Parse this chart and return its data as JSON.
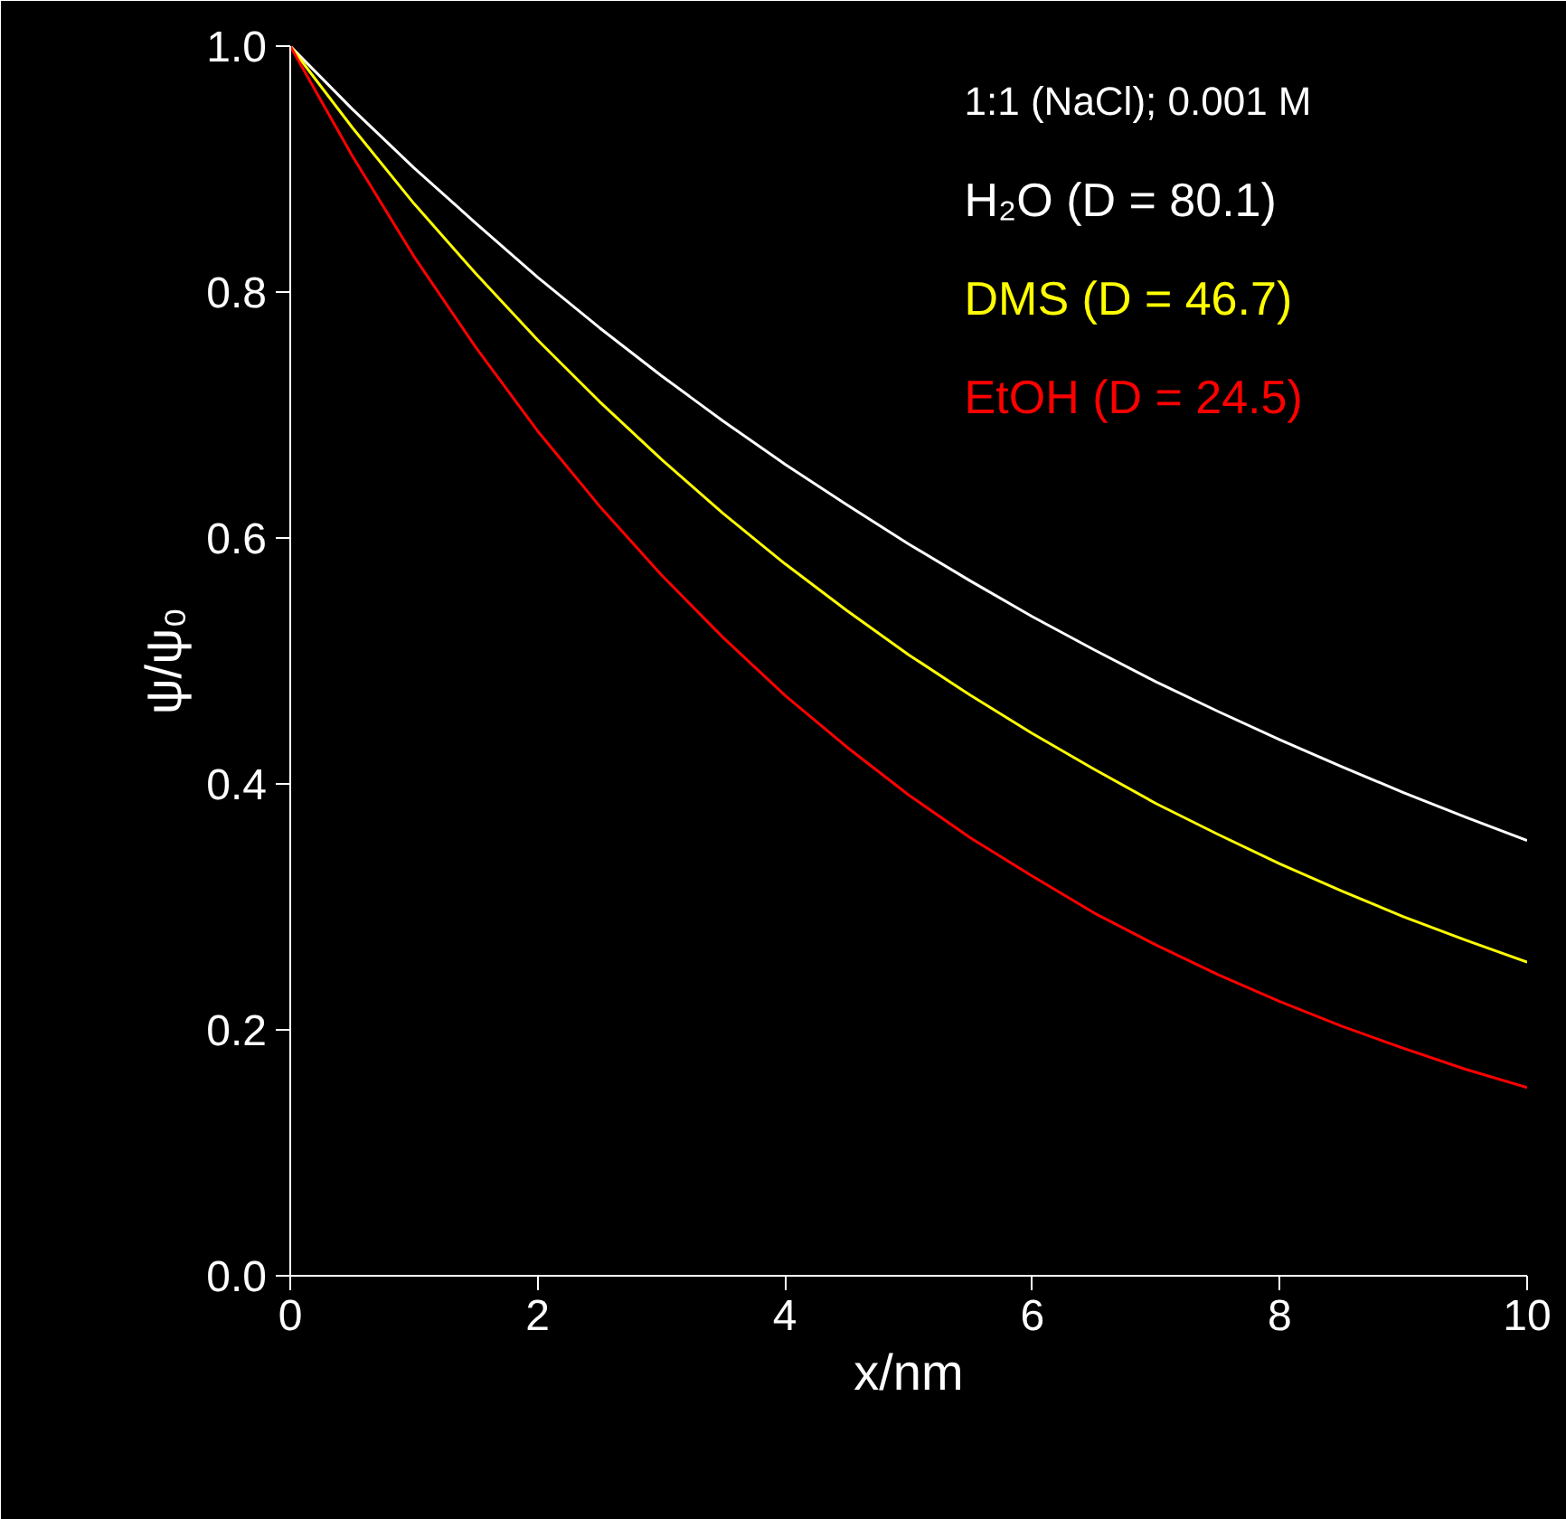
{
  "chart_data": {
    "type": "line",
    "x": [
      0,
      0.5,
      1,
      1.5,
      2,
      2.5,
      3,
      3.5,
      4,
      4.5,
      5,
      5.5,
      6,
      6.5,
      7,
      7.5,
      8,
      8.5,
      9,
      9.5,
      10
    ],
    "series": [
      {
        "name": "H₂O (D = 80.1)",
        "color": "#ffffff",
        "values": [
          1.0,
          0.949,
          0.901,
          0.856,
          0.812,
          0.771,
          0.732,
          0.695,
          0.66,
          0.627,
          0.595,
          0.565,
          0.536,
          0.509,
          0.483,
          0.459,
          0.436,
          0.414,
          0.393,
          0.373,
          0.354
        ]
      },
      {
        "name": "DMS (D = 46.7)",
        "color": "#ffff00",
        "values": [
          1.0,
          0.934,
          0.872,
          0.815,
          0.761,
          0.711,
          0.664,
          0.62,
          0.579,
          0.541,
          0.505,
          0.472,
          0.441,
          0.412,
          0.384,
          0.359,
          0.335,
          0.313,
          0.292,
          0.273,
          0.255
        ]
      },
      {
        "name": "EtOH (D = 24.5)",
        "color": "#ff0000",
        "values": [
          1.0,
          0.911,
          0.829,
          0.755,
          0.687,
          0.626,
          0.57,
          0.519,
          0.472,
          0.43,
          0.391,
          0.356,
          0.325,
          0.295,
          0.269,
          0.245,
          0.223,
          0.203,
          0.185,
          0.168,
          0.153
        ]
      }
    ],
    "xlabel": "x/nm",
    "ylabel": "ψ/ψ₀",
    "annotations": [
      "1:1 (NaCl); 0.001 M"
    ],
    "xlim": [
      0,
      10
    ],
    "ylim": [
      0,
      1
    ],
    "xticks": [
      0,
      2,
      4,
      6,
      8,
      10
    ],
    "yticks": [
      {
        "value": 0,
        "label": "0.0"
      },
      {
        "value": 0.2,
        "label": "0.2"
      },
      {
        "value": 0.4,
        "label": "0.4"
      },
      {
        "value": 0.6,
        "label": "0.6"
      },
      {
        "value": 0.8,
        "label": "0.8"
      },
      {
        "value": 1,
        "label": "1.0"
      }
    ],
    "legend": "top right",
    "grid": false,
    "marker": "none",
    "line_style": "solid"
  }
}
